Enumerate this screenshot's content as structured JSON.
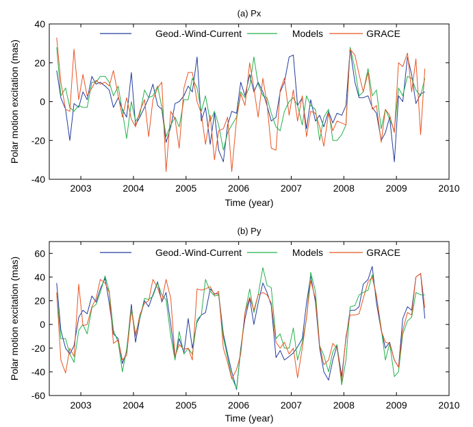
{
  "figure_label": "",
  "chart_data": [
    {
      "type": "line",
      "title": "(a) Px",
      "xlabel": "Time (year)",
      "ylabel": "Polar motion excitation (mas)",
      "xlim": [
        2002.4,
        2010
      ],
      "ylim": [
        -40,
        40
      ],
      "xticks": [
        2003,
        2004,
        2005,
        2006,
        2007,
        2008,
        2009,
        2010
      ],
      "xtick_labels": [
        "2003",
        "2004",
        "2005",
        "2006",
        "2007",
        "2008",
        "2009",
        "2010"
      ],
      "yticks": [
        -40,
        -20,
        0,
        20,
        40
      ],
      "ytick_labels": [
        "-40",
        "-20",
        "0",
        "20",
        "40"
      ],
      "grid": false,
      "legend_position": "top",
      "x": [
        2002.54,
        2002.62,
        2002.71,
        2002.79,
        2002.87,
        2002.96,
        2003.04,
        2003.12,
        2003.21,
        2003.29,
        2003.37,
        2003.46,
        2003.54,
        2003.62,
        2003.71,
        2003.79,
        2003.87,
        2003.96,
        2004.04,
        2004.12,
        2004.21,
        2004.29,
        2004.37,
        2004.46,
        2004.54,
        2004.62,
        2004.71,
        2004.79,
        2004.87,
        2004.96,
        2005.04,
        2005.12,
        2005.21,
        2005.29,
        2005.37,
        2005.46,
        2005.54,
        2005.62,
        2005.71,
        2005.79,
        2005.87,
        2005.96,
        2006.04,
        2006.12,
        2006.21,
        2006.29,
        2006.37,
        2006.46,
        2006.54,
        2006.62,
        2006.71,
        2006.79,
        2006.87,
        2006.96,
        2007.04,
        2007.12,
        2007.21,
        2007.29,
        2007.37,
        2007.46,
        2007.54,
        2007.62,
        2007.71,
        2007.79,
        2007.87,
        2007.96,
        2008.04,
        2008.12,
        2008.21,
        2008.29,
        2008.37,
        2008.46,
        2008.54,
        2008.62,
        2008.71,
        2008.79,
        2008.87,
        2008.96,
        2009.04,
        2009.12,
        2009.21,
        2009.29,
        2009.37,
        2009.46,
        2009.54
      ],
      "series": [
        {
          "name": "Geod.-Wind-Current",
          "color": "#1f3a9e",
          "values": [
            16,
            2,
            -4,
            -20,
            -1,
            -3,
            5,
            1,
            13,
            9,
            10,
            8,
            6,
            -3,
            2,
            -4,
            -8,
            15,
            -12,
            -8,
            -3,
            2,
            9,
            -2,
            -4,
            -21,
            -13,
            -1,
            0,
            3,
            8,
            5,
            23,
            -10,
            -3,
            -22,
            -6,
            -25,
            -31,
            -12,
            -5,
            -6,
            10,
            3,
            14,
            5,
            10,
            5,
            -2,
            -10,
            -8,
            5,
            10,
            23,
            24,
            -2,
            2,
            -14,
            1,
            -10,
            -7,
            -13,
            -5,
            -11,
            -6,
            -7,
            -2,
            27,
            10,
            2,
            2,
            3,
            -3,
            -6,
            -20,
            -16,
            -8,
            -31,
            3,
            0,
            23,
            14,
            -1,
            4,
            5
          ]
        },
        {
          "name": "Models",
          "color": "#22b04a",
          "values": [
            28,
            3,
            7,
            -3,
            -5,
            -2,
            -3,
            -3,
            10,
            10,
            13,
            13,
            10,
            3,
            8,
            -5,
            -19,
            0,
            -10,
            -7,
            6,
            2,
            3,
            8,
            -3,
            -18,
            -12,
            -8,
            -13,
            1,
            1,
            12,
            7,
            -5,
            3,
            -10,
            -5,
            -12,
            -25,
            -16,
            -12,
            -8,
            5,
            2,
            8,
            23,
            9,
            3,
            2,
            -6,
            -13,
            -15,
            -5,
            0,
            2,
            -2,
            -12,
            3,
            -2,
            -4,
            -20,
            -8,
            -4,
            -20,
            -20,
            -17,
            -12,
            28,
            17,
            3,
            5,
            17,
            3,
            6,
            -14,
            -4,
            -9,
            -15,
            7,
            3,
            13,
            12,
            6,
            3,
            12
          ]
        },
        {
          "name": "GRACE",
          "color": "#e8531f",
          "values": [
            33,
            10,
            -4,
            -5,
            27,
            1,
            14,
            3,
            7,
            11,
            9,
            10,
            8,
            16,
            3,
            -8,
            2,
            -9,
            -13,
            -5,
            1,
            -18,
            1,
            7,
            10,
            -36,
            -5,
            -9,
            -24,
            7,
            15,
            15,
            0,
            -6,
            -22,
            -7,
            -30,
            -15,
            -14,
            -8,
            -36,
            -9,
            4,
            -2,
            20,
            7,
            -8,
            12,
            -1,
            -24,
            -25,
            6,
            12,
            -7,
            6,
            -10,
            3,
            -18,
            -5,
            -6,
            -13,
            -23,
            -6,
            -15,
            -10,
            -11,
            -12,
            27,
            24,
            14,
            5,
            15,
            -4,
            -2,
            -21,
            -4,
            -7,
            -16,
            20,
            18,
            25,
            5,
            22,
            -17,
            17
          ]
        }
      ]
    },
    {
      "type": "line",
      "title": "(b) Py",
      "xlabel": "Time (year)",
      "ylabel": "Polar motion excitation (mas)",
      "xlim": [
        2002.4,
        2010
      ],
      "ylim": [
        -60,
        70
      ],
      "xticks": [
        2003,
        2004,
        2005,
        2006,
        2007,
        2008,
        2009,
        2010
      ],
      "xtick_labels": [
        "2003",
        "2004",
        "2005",
        "2006",
        "2007",
        "2008",
        "2009",
        "2010"
      ],
      "yticks": [
        -60,
        -40,
        -20,
        0,
        20,
        40,
        60
      ],
      "ytick_labels": [
        "-60",
        "-40",
        "-20",
        "0",
        "20",
        "40",
        "60"
      ],
      "grid": false,
      "legend_position": "top",
      "x": [
        2002.54,
        2002.62,
        2002.71,
        2002.79,
        2002.87,
        2002.96,
        2003.04,
        2003.12,
        2003.21,
        2003.29,
        2003.37,
        2003.46,
        2003.54,
        2003.62,
        2003.71,
        2003.79,
        2003.87,
        2003.96,
        2004.04,
        2004.12,
        2004.21,
        2004.29,
        2004.37,
        2004.46,
        2004.54,
        2004.62,
        2004.71,
        2004.79,
        2004.87,
        2004.96,
        2005.04,
        2005.12,
        2005.21,
        2005.29,
        2005.37,
        2005.46,
        2005.54,
        2005.62,
        2005.71,
        2005.79,
        2005.87,
        2005.96,
        2006.04,
        2006.12,
        2006.21,
        2006.29,
        2006.37,
        2006.46,
        2006.54,
        2006.62,
        2006.71,
        2006.79,
        2006.87,
        2006.96,
        2007.04,
        2007.12,
        2007.21,
        2007.29,
        2007.37,
        2007.46,
        2007.54,
        2007.62,
        2007.71,
        2007.79,
        2007.87,
        2007.96,
        2008.04,
        2008.12,
        2008.21,
        2008.29,
        2008.37,
        2008.46,
        2008.54,
        2008.62,
        2008.71,
        2008.79,
        2008.87,
        2008.96,
        2009.04,
        2009.12,
        2009.21,
        2009.29,
        2009.37,
        2009.46,
        2009.54
      ],
      "series": [
        {
          "name": "Geod.-Wind-Current",
          "color": "#1f3a9e",
          "values": [
            35,
            -5,
            -20,
            -25,
            -18,
            6,
            12,
            9,
            24,
            19,
            30,
            39,
            18,
            -8,
            -12,
            -33,
            -23,
            17,
            -15,
            5,
            20,
            15,
            25,
            36,
            19,
            27,
            0,
            -28,
            -12,
            -24,
            5,
            -20,
            2,
            8,
            10,
            30,
            26,
            26,
            -8,
            -25,
            -40,
            -55,
            -20,
            5,
            22,
            0,
            18,
            35,
            27,
            16,
            -28,
            -22,
            -30,
            -27,
            -24,
            -19,
            -12,
            18,
            41,
            19,
            -20,
            -40,
            -47,
            -30,
            -18,
            -44,
            -12,
            12,
            12,
            15,
            34,
            38,
            49,
            18,
            -5,
            -20,
            -15,
            -30,
            -36,
            5,
            15,
            12,
            40,
            43,
            5
          ]
        },
        {
          "name": "Models",
          "color": "#22b04a",
          "values": [
            26,
            -12,
            -12,
            -25,
            -32,
            -5,
            0,
            -8,
            14,
            17,
            27,
            41,
            28,
            -5,
            -15,
            -40,
            -21,
            14,
            -8,
            5,
            22,
            21,
            24,
            35,
            25,
            21,
            -10,
            -30,
            -6,
            -25,
            -20,
            -25,
            4,
            8,
            38,
            28,
            24,
            25,
            -11,
            -28,
            -45,
            -54,
            -22,
            10,
            30,
            10,
            25,
            48,
            33,
            31,
            -12,
            -8,
            -20,
            -20,
            -3,
            -30,
            -15,
            5,
            44,
            28,
            -18,
            -26,
            -40,
            -23,
            -17,
            -51,
            -30,
            15,
            16,
            25,
            27,
            29,
            42,
            24,
            -3,
            -30,
            -16,
            -44,
            -40,
            -8,
            3,
            6,
            27,
            25,
            25
          ]
        },
        {
          "name": "GRACE",
          "color": "#e8531f",
          "values": [
            27,
            -30,
            -41,
            -20,
            -27,
            34,
            -1,
            0,
            15,
            22,
            38,
            35,
            27,
            -16,
            -13,
            -30,
            -26,
            12,
            -10,
            8,
            18,
            20,
            38,
            31,
            20,
            38,
            22,
            -27,
            -17,
            -21,
            -20,
            -30,
            30,
            29,
            30,
            32,
            25,
            28,
            -20,
            -32,
            -46,
            -38,
            -25,
            10,
            23,
            12,
            25,
            27,
            25,
            18,
            -15,
            -20,
            -15,
            -25,
            -20,
            -45,
            -20,
            6,
            37,
            22,
            -18,
            -34,
            -30,
            -16,
            -20,
            -48,
            -10,
            8,
            8,
            9,
            22,
            36,
            40,
            24,
            -5,
            -15,
            -16,
            -30,
            -36,
            -5,
            10,
            8,
            40,
            43,
            14
          ]
        }
      ]
    }
  ]
}
